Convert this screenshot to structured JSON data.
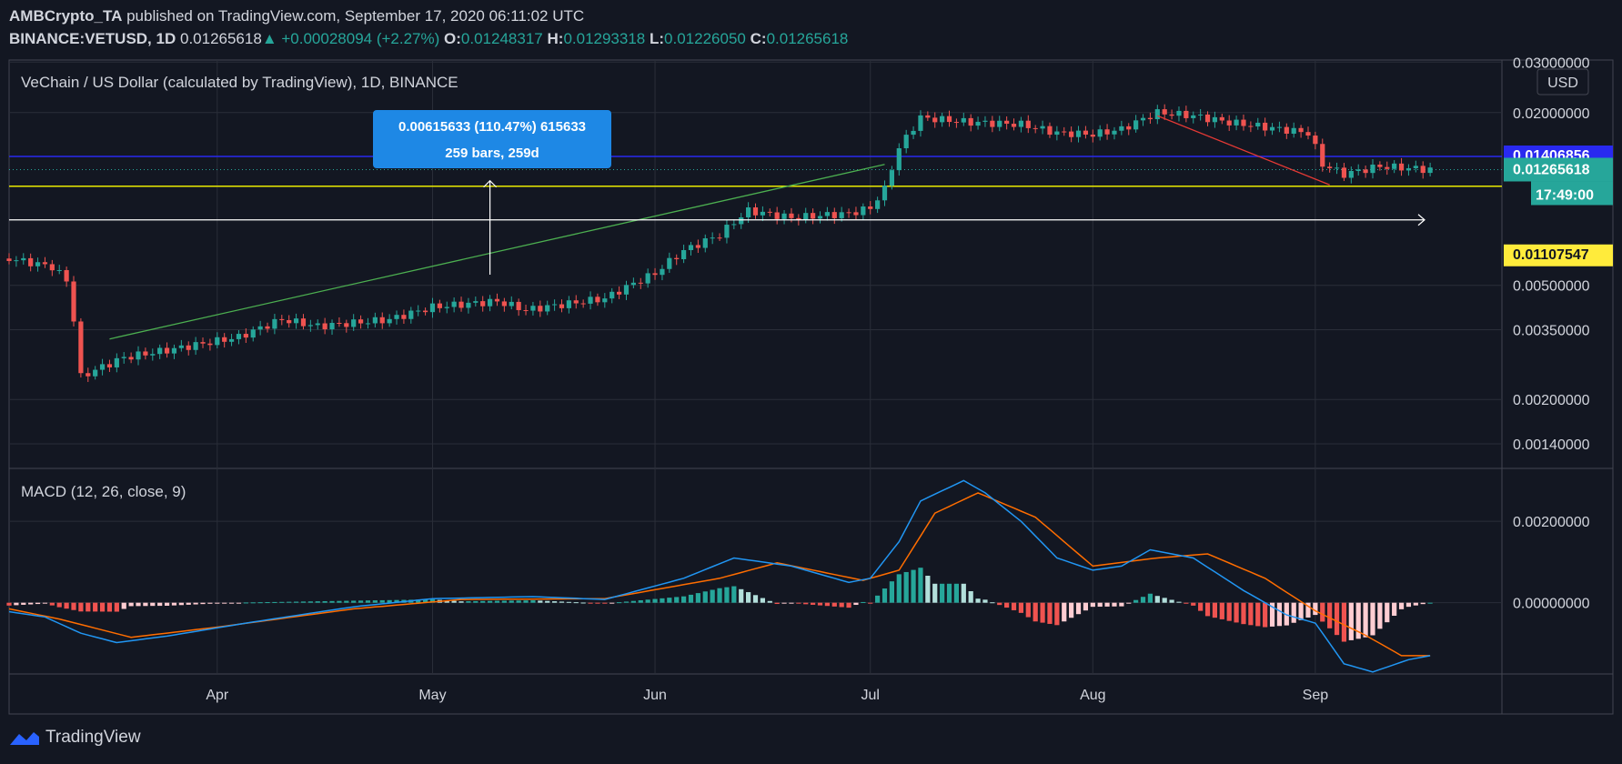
{
  "header": {
    "author": "AMBCrypto_TA",
    "published": "published on TradingView.com, September 17, 2020 06:11:02 UTC",
    "symbol": "BINANCE:VETUSD, 1D",
    "last": "0.01265618",
    "change": "+0.00028094 (+2.27%)",
    "open_label": "O:",
    "open": "0.01248317",
    "high_label": "H:",
    "high": "0.01293318",
    "low_label": "L:",
    "low": "0.01226050",
    "close_label": "C:",
    "close": "0.01265618"
  },
  "footer": {
    "brand": "TradingView"
  },
  "colors": {
    "background": "#131722",
    "up": "#26a69a",
    "down": "#ef5350",
    "macd_line": "#2196f3",
    "signal_line": "#ff6d00",
    "hist_up_strong": "#26a69a",
    "hist_up_weak": "#b2dfdb",
    "hist_down_strong": "#ef5350",
    "hist_down_weak": "#ffcdd2",
    "level_blue": "#2929f0",
    "level_yellow": "#e8e800",
    "ruler": "#1e88e5"
  },
  "chart_data": [
    {
      "type": "candlestick",
      "title": "VeChain / US Dollar (calculated by TradingView), 1D, BINANCE",
      "currency_badge": "USD",
      "y_scale": "log",
      "ylim": [
        0.00115,
        0.0305
      ],
      "y_ticks": [
        "0.03000000",
        "0.02000000",
        "0.00500000",
        "0.00350000",
        "0.00200000",
        "0.00140000"
      ],
      "x_ticks": [
        "Apr",
        "May",
        "Jun",
        "Jul",
        "Aug",
        "Sep"
      ],
      "x_tick_dates": [
        "2020-04-01",
        "2020-05-01",
        "2020-06-01",
        "2020-07-01",
        "2020-08-01",
        "2020-09-01"
      ],
      "x_range": [
        "2020-03-03",
        "2020-09-27"
      ],
      "price_labels": {
        "blue_level": "0.01406856",
        "last_price": "0.01265618",
        "countdown": "17:49:00",
        "yellow_level": "0.01107547"
      },
      "levels": {
        "blue": 0.01406856,
        "yellow": 0.01107547
      },
      "ruler": {
        "text_line1": "0.00615633 (110.47%) 615633",
        "text_line2": "259 bars, 259d"
      },
      "trendlines": [
        {
          "color": "green",
          "from": [
            "2020-03-17",
            0.00325
          ],
          "to": [
            "2020-07-03",
            0.0132
          ]
        },
        {
          "color": "red",
          "from": [
            "2020-08-10",
            0.0195
          ],
          "to": [
            "2020-09-03",
            0.0112
          ]
        }
      ],
      "anchors": [
        [
          "2020-03-03",
          0.0062
        ],
        [
          "2020-03-09",
          0.0058
        ],
        [
          "2020-03-11",
          0.0052
        ],
        [
          "2020-03-13",
          0.0024
        ],
        [
          "2020-03-16",
          0.0026
        ],
        [
          "2020-03-19",
          0.0028
        ],
        [
          "2020-03-26",
          0.003
        ],
        [
          "2020-04-04",
          0.0033
        ],
        [
          "2020-04-10",
          0.0038
        ],
        [
          "2020-04-15",
          0.0036
        ],
        [
          "2020-04-25",
          0.0038
        ],
        [
          "2020-05-01",
          0.0042
        ],
        [
          "2020-05-10",
          0.0044
        ],
        [
          "2020-05-14",
          0.0041
        ],
        [
          "2020-05-25",
          0.0045
        ],
        [
          "2020-06-01",
          0.0055
        ],
        [
          "2020-06-05",
          0.0066
        ],
        [
          "2020-06-10",
          0.0075
        ],
        [
          "2020-06-14",
          0.0091
        ],
        [
          "2020-06-20",
          0.0086
        ],
        [
          "2020-06-28",
          0.0089
        ],
        [
          "2020-07-01",
          0.0093
        ],
        [
          "2020-07-03",
          0.0108
        ],
        [
          "2020-07-05",
          0.015
        ],
        [
          "2020-07-08",
          0.0192
        ],
        [
          "2020-07-15",
          0.0185
        ],
        [
          "2020-07-22",
          0.0182
        ],
        [
          "2020-07-27",
          0.017
        ],
        [
          "2020-08-01",
          0.0168
        ],
        [
          "2020-08-05",
          0.0175
        ],
        [
          "2020-08-10",
          0.02
        ],
        [
          "2020-08-15",
          0.0195
        ],
        [
          "2020-08-20",
          0.0185
        ],
        [
          "2020-08-25",
          0.0178
        ],
        [
          "2020-08-31",
          0.017
        ],
        [
          "2020-09-02",
          0.0132
        ],
        [
          "2020-09-05",
          0.0122
        ],
        [
          "2020-09-10",
          0.013
        ],
        [
          "2020-09-17",
          0.01265618
        ]
      ]
    },
    {
      "type": "macd",
      "title": "MACD (12, 26, close, 9)",
      "y_ticks": [
        "0.00200000",
        "0.00000000"
      ],
      "ylim": [
        -0.00175,
        0.0033
      ],
      "macd_anchors": [
        [
          "2020-03-03",
          -0.00022
        ],
        [
          "2020-03-08",
          -0.00035
        ],
        [
          "2020-03-13",
          -0.00075
        ],
        [
          "2020-03-18",
          -0.00098
        ],
        [
          "2020-03-25",
          -0.00082
        ],
        [
          "2020-04-05",
          -0.0005
        ],
        [
          "2020-04-20",
          -0.0001
        ],
        [
          "2020-05-01",
          0.0001
        ],
        [
          "2020-05-15",
          0.00015
        ],
        [
          "2020-05-25",
          8e-05
        ],
        [
          "2020-06-05",
          0.0006
        ],
        [
          "2020-06-12",
          0.0011
        ],
        [
          "2020-06-20",
          0.0009
        ],
        [
          "2020-06-28",
          0.0005
        ],
        [
          "2020-07-01",
          0.0006
        ],
        [
          "2020-07-05",
          0.0015
        ],
        [
          "2020-07-08",
          0.0025
        ],
        [
          "2020-07-14",
          0.003
        ],
        [
          "2020-07-17",
          0.0027
        ],
        [
          "2020-07-22",
          0.002
        ],
        [
          "2020-07-27",
          0.0011
        ],
        [
          "2020-08-01",
          0.0008
        ],
        [
          "2020-08-05",
          0.0009
        ],
        [
          "2020-08-09",
          0.0013
        ],
        [
          "2020-08-15",
          0.0011
        ],
        [
          "2020-08-22",
          0.0003
        ],
        [
          "2020-08-28",
          -0.0003
        ],
        [
          "2020-09-01",
          -0.0005
        ],
        [
          "2020-09-05",
          -0.0015
        ],
        [
          "2020-09-09",
          -0.0017
        ],
        [
          "2020-09-14",
          -0.0014
        ],
        [
          "2020-09-17",
          -0.0013
        ]
      ],
      "signal_anchors": [
        [
          "2020-03-03",
          -0.00015
        ],
        [
          "2020-03-10",
          -0.0004
        ],
        [
          "2020-03-20",
          -0.00085
        ],
        [
          "2020-04-01",
          -0.0006
        ],
        [
          "2020-04-20",
          -0.00015
        ],
        [
          "2020-05-05",
          8e-05
        ],
        [
          "2020-05-25",
          0.0001
        ],
        [
          "2020-06-10",
          0.0006
        ],
        [
          "2020-06-18",
          0.00098
        ],
        [
          "2020-06-30",
          0.00055
        ],
        [
          "2020-07-05",
          0.0008
        ],
        [
          "2020-07-10",
          0.0022
        ],
        [
          "2020-07-16",
          0.0027
        ],
        [
          "2020-07-24",
          0.0021
        ],
        [
          "2020-08-01",
          0.0009
        ],
        [
          "2020-08-10",
          0.0011
        ],
        [
          "2020-08-17",
          0.0012
        ],
        [
          "2020-08-25",
          0.0006
        ],
        [
          "2020-09-01",
          -0.0002
        ],
        [
          "2020-09-08",
          -0.0008
        ],
        [
          "2020-09-13",
          -0.0013
        ],
        [
          "2020-09-17",
          -0.0013
        ]
      ]
    }
  ]
}
